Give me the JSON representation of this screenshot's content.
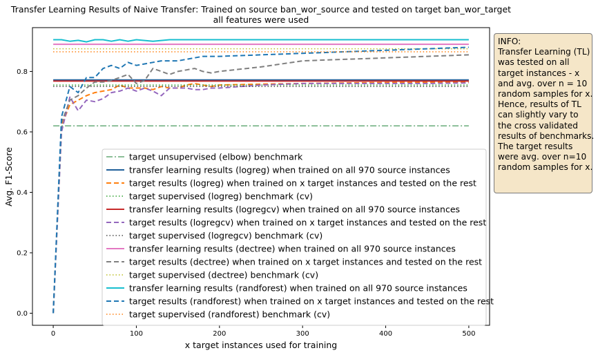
{
  "chart_data": {
    "type": "line",
    "title": "Transfer Learning Results of Naive Transfer: Trained on source ban_wor_source and tested on target ban_wor_target",
    "subtitle": "all features were used",
    "xlabel": "x target instances used for training",
    "ylabel": "Avg. F1-Score",
    "xlim": [
      -25,
      525
    ],
    "ylim": [
      -0.04,
      0.945
    ],
    "x_ticks": [
      0,
      100,
      200,
      300,
      400,
      500
    ],
    "x_tick_labels": [
      "0",
      "100",
      "200",
      "300",
      "400",
      "500"
    ],
    "y_ticks": [
      0.0,
      0.2,
      0.4,
      0.6,
      0.8
    ],
    "y_tick_labels": [
      "0.0",
      "0.2",
      "0.4",
      "0.6",
      "0.8"
    ],
    "grid": false,
    "legend_position": "lower-right",
    "series": [
      {
        "name": "target unsupervised (elbow) benchmark",
        "style": "dashdot",
        "color": "#66aa77",
        "width": 1.5,
        "x": [
          0,
          500
        ],
        "y": [
          0.62,
          0.62
        ]
      },
      {
        "name": "transfer learning results (logreg) when trained on all 970 source instances",
        "style": "solid",
        "color": "#1f5f9a",
        "width": 2,
        "x": [
          0,
          500
        ],
        "y": [
          0.772,
          0.772
        ]
      },
      {
        "name": "target results (logreg) when trained on x target instances and tested on the rest",
        "style": "dashed",
        "color": "#ff7f0e",
        "width": 2,
        "x": [
          0,
          10,
          20,
          30,
          40,
          50,
          60,
          70,
          80,
          90,
          100,
          110,
          120,
          130,
          140,
          150,
          160,
          170,
          180,
          190,
          200,
          250,
          300,
          350,
          400,
          450,
          500
        ],
        "y": [
          0.0,
          0.62,
          0.69,
          0.705,
          0.72,
          0.73,
          0.735,
          0.74,
          0.755,
          0.745,
          0.745,
          0.745,
          0.74,
          0.75,
          0.745,
          0.745,
          0.755,
          0.76,
          0.755,
          0.75,
          0.755,
          0.758,
          0.76,
          0.762,
          0.763,
          0.764,
          0.765
        ]
      },
      {
        "name": "target supervised (logreg) benchmark (cv)",
        "style": "dotted",
        "color": "#2ca02c",
        "width": 1.5,
        "x": [
          0,
          500
        ],
        "y": [
          0.755,
          0.755
        ]
      },
      {
        "name": "transfer learning results (logregcv) when trained on all 970 source instances",
        "style": "solid",
        "color": "#c62828",
        "width": 2,
        "x": [
          0,
          500
        ],
        "y": [
          0.768,
          0.768
        ]
      },
      {
        "name": "target results (logregcv) when trained on x target instances and tested on the rest",
        "style": "dashed",
        "color": "#9467bd",
        "width": 2,
        "x": [
          0,
          10,
          20,
          30,
          40,
          50,
          60,
          70,
          80,
          90,
          100,
          110,
          120,
          130,
          140,
          150,
          160,
          170,
          180,
          190,
          200,
          250,
          300,
          350,
          400,
          450,
          500
        ],
        "y": [
          0.0,
          0.6,
          0.715,
          0.67,
          0.705,
          0.7,
          0.71,
          0.73,
          0.735,
          0.745,
          0.735,
          0.745,
          0.735,
          0.72,
          0.745,
          0.745,
          0.745,
          0.74,
          0.74,
          0.745,
          0.745,
          0.755,
          0.76,
          0.76,
          0.76,
          0.76,
          0.762
        ]
      },
      {
        "name": "target supervised (logregcv) benchmark (cv)",
        "style": "dotted",
        "color": "#4a4a4a",
        "width": 1.5,
        "x": [
          0,
          500
        ],
        "y": [
          0.75,
          0.75
        ]
      },
      {
        "name": "transfer learning results (dectree) when trained on all 970 source instances",
        "style": "solid",
        "color": "#e377c2",
        "width": 2,
        "x": [
          0,
          500
        ],
        "y": [
          0.89,
          0.89
        ]
      },
      {
        "name": "target results (dectree) when trained on x target instances and tested on the rest",
        "style": "dashed",
        "color": "#7f7f7f",
        "width": 2,
        "x": [
          0,
          10,
          20,
          30,
          40,
          50,
          60,
          70,
          80,
          90,
          100,
          110,
          120,
          130,
          140,
          150,
          160,
          170,
          180,
          190,
          200,
          250,
          300,
          350,
          400,
          450,
          500
        ],
        "y": [
          0.0,
          0.63,
          0.705,
          0.72,
          0.745,
          0.765,
          0.765,
          0.77,
          0.78,
          0.79,
          0.76,
          0.77,
          0.81,
          0.8,
          0.79,
          0.8,
          0.805,
          0.81,
          0.8,
          0.795,
          0.8,
          0.815,
          0.835,
          0.84,
          0.845,
          0.85,
          0.855
        ]
      },
      {
        "name": "target supervised (dectree) benchmark (cv)",
        "style": "dotted",
        "color": "#bcbd22",
        "width": 1.5,
        "x": [
          0,
          500
        ],
        "y": [
          0.875,
          0.875
        ]
      },
      {
        "name": "transfer learning results (randforest) when trained on all 970 source instances",
        "style": "solid",
        "color": "#17becf",
        "width": 2,
        "x": [
          0,
          10,
          20,
          30,
          40,
          50,
          60,
          70,
          80,
          90,
          100,
          120,
          140,
          160,
          180,
          200,
          500
        ],
        "y": [
          0.905,
          0.905,
          0.9,
          0.903,
          0.898,
          0.905,
          0.905,
          0.9,
          0.905,
          0.9,
          0.905,
          0.9,
          0.905,
          0.905,
          0.905,
          0.905,
          0.905
        ]
      },
      {
        "name": "target results (randforest) when trained on x target instances and tested on the rest",
        "style": "dashed",
        "color": "#1f77b4",
        "width": 2,
        "x": [
          0,
          10,
          20,
          30,
          40,
          50,
          60,
          70,
          80,
          90,
          100,
          110,
          120,
          130,
          140,
          150,
          160,
          170,
          180,
          190,
          200,
          250,
          300,
          350,
          400,
          450,
          500
        ],
        "y": [
          0.0,
          0.65,
          0.75,
          0.73,
          0.78,
          0.78,
          0.81,
          0.82,
          0.81,
          0.83,
          0.82,
          0.825,
          0.83,
          0.835,
          0.835,
          0.835,
          0.84,
          0.845,
          0.85,
          0.85,
          0.85,
          0.855,
          0.86,
          0.865,
          0.87,
          0.875,
          0.88
        ]
      },
      {
        "name": "target supervised (randforest) benchmark (cv)",
        "style": "dotted",
        "color": "#ff7f0e",
        "width": 1.5,
        "x": [
          0,
          500
        ],
        "y": [
          0.865,
          0.865
        ]
      }
    ]
  },
  "info_box": {
    "lines": [
      "INFO:",
      "Transfer Learning (TL)",
      "was tested on all",
      "target instances - x",
      "and avg. over n = 10",
      "random samples for x.",
      "Hence, results of TL",
      "can slightly vary to",
      "the cross validated",
      "results of benchmarks.",
      "The target results",
      "were avg. over n=10",
      "random samples for x."
    ]
  }
}
